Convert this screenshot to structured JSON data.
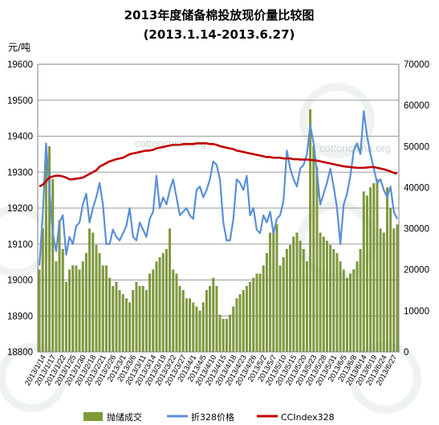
{
  "colors": {
    "bar": "#7f9a3a",
    "bar_edge": "#5f7a23",
    "price_line": "#5b8fd6",
    "index_line": "#c00000",
    "grid": "#9a9a9a",
    "plot_border": "#808080",
    "watermark": "#c9d7cc"
  },
  "watermarks": [
    "cottonchina.org",
    "cottonchina.org"
  ],
  "chart_data": {
    "type": "bar",
    "title": "2013年度储备棉投放现价量比较图",
    "subtitle": "(2013.1.14-2013.6.27)",
    "ylabel": "元/吨",
    "y_left": {
      "min": 18800,
      "max": 19600,
      "ticks": [
        18800,
        18900,
        19000,
        19100,
        19200,
        19300,
        19400,
        19500,
        19600
      ]
    },
    "y_right": {
      "min": 0,
      "max": 70000,
      "ticks": [
        0,
        10000,
        20000,
        30000,
        40000,
        50000,
        60000,
        70000
      ]
    },
    "grid": "horizontal",
    "legend_position": "bottom",
    "x_tick_labels": [
      "2013/1/14",
      "2013/1/17",
      "2013/1/22",
      "2013/1/25",
      "2013/1/30",
      "2013/2/18",
      "2013/2/21",
      "2013/2/26",
      "2013/3/1",
      "2013/3/6",
      "2013/3/11",
      "2013/3/14",
      "2013/3/19",
      "2013/3/22",
      "2013/3/27",
      "2013/4/1",
      "2013/4/5",
      "2013/4/10",
      "2013/4/15",
      "2013/4/18",
      "2013/4/23",
      "2013/4/26",
      "2013/5/2",
      "2013/5/7",
      "2013/5/10",
      "2013/5/15",
      "2013/5/20",
      "2013/5/23",
      "2013/5/28",
      "2013/5/31",
      "2013/6/5",
      "2013/6/8",
      "2013/6/14",
      "2013/6/19",
      "2013/6/24",
      "2013/6/27"
    ],
    "series": [
      {
        "name": "抛储成交",
        "kind": "bar",
        "axis": "right",
        "values": [
          20000,
          30000,
          50000,
          50000,
          42000,
          22000,
          32000,
          25000,
          17000,
          20000,
          21000,
          21000,
          20000,
          22000,
          24000,
          30000,
          29000,
          26000,
          24000,
          21000,
          21000,
          18000,
          16000,
          17000,
          15000,
          14000,
          13000,
          12000,
          15000,
          17000,
          16000,
          16000,
          15000,
          19000,
          20000,
          22000,
          23000,
          24000,
          25000,
          30000,
          20000,
          19000,
          16000,
          15000,
          13000,
          13000,
          12000,
          11000,
          10000,
          12000,
          15000,
          16000,
          18000,
          16000,
          9000,
          8000,
          8000,
          9000,
          11000,
          13000,
          14000,
          15000,
          16000,
          17000,
          18000,
          19000,
          19000,
          21000,
          24000,
          29000,
          30000,
          31000,
          21000,
          23000,
          25000,
          26000,
          28000,
          29000,
          27000,
          25000,
          22000,
          59000,
          50000,
          45000,
          29000,
          28000,
          27000,
          26000,
          25000,
          24000,
          22000,
          20000,
          18000,
          19000,
          20000,
          22000,
          25000,
          39000,
          38000,
          40000,
          41000,
          42000,
          30000,
          29000,
          40000,
          35000,
          30000,
          31000
        ]
      },
      {
        "name": "折328价格",
        "kind": "line",
        "axis": "left",
        "values": [
          19040,
          19180,
          19380,
          19250,
          19130,
          19080,
          19160,
          19180,
          19070,
          19120,
          19100,
          19150,
          19160,
          19210,
          19240,
          19160,
          19200,
          19230,
          19270,
          19210,
          19100,
          19100,
          19140,
          19120,
          19110,
          19130,
          19150,
          19200,
          19120,
          19110,
          19160,
          19140,
          19120,
          19170,
          19190,
          19290,
          19200,
          19230,
          19210,
          19250,
          19280,
          19230,
          19180,
          19190,
          19200,
          19180,
          19170,
          19250,
          19260,
          19230,
          19250,
          19280,
          19330,
          19320,
          19280,
          19160,
          19110,
          19110,
          19170,
          19280,
          19270,
          19250,
          19290,
          19180,
          19200,
          19140,
          19130,
          19180,
          19160,
          19190,
          19130,
          19170,
          19180,
          19220,
          19360,
          19310,
          19280,
          19260,
          19310,
          19320,
          19350,
          19430,
          19380,
          19300,
          19210,
          19240,
          19270,
          19310,
          19260,
          19200,
          19100,
          19210,
          19240,
          19290,
          19360,
          19380,
          19350,
          19470,
          19400,
          19350,
          19310,
          19270,
          19280,
          19250,
          19230,
          19260,
          19190,
          19170
        ]
      },
      {
        "name": "CCIndex328",
        "kind": "line",
        "axis": "left",
        "values": [
          19260,
          19265,
          19275,
          19285,
          19288,
          19290,
          19290,
          19288,
          19285,
          19280,
          19280,
          19282,
          19283,
          19285,
          19290,
          19295,
          19300,
          19305,
          19315,
          19320,
          19325,
          19330,
          19333,
          19336,
          19338,
          19340,
          19345,
          19350,
          19352,
          19354,
          19356,
          19358,
          19360,
          19360,
          19362,
          19366,
          19368,
          19370,
          19372,
          19374,
          19376,
          19376,
          19376,
          19378,
          19378,
          19378,
          19378,
          19380,
          19380,
          19380,
          19380,
          19378,
          19378,
          19376,
          19372,
          19370,
          19368,
          19366,
          19364,
          19360,
          19358,
          19356,
          19354,
          19352,
          19350,
          19348,
          19346,
          19344,
          19342,
          19342,
          19340,
          19340,
          19340,
          19338,
          19338,
          19338,
          19336,
          19336,
          19335,
          19335,
          19335,
          19334,
          19333,
          19332,
          19330,
          19328,
          19326,
          19324,
          19322,
          19320,
          19318,
          19316,
          19315,
          19314,
          19313,
          19312,
          19312,
          19312,
          19313,
          19314,
          19314,
          19312,
          19310,
          19308,
          19305,
          19302,
          19298,
          19296
        ]
      }
    ]
  }
}
